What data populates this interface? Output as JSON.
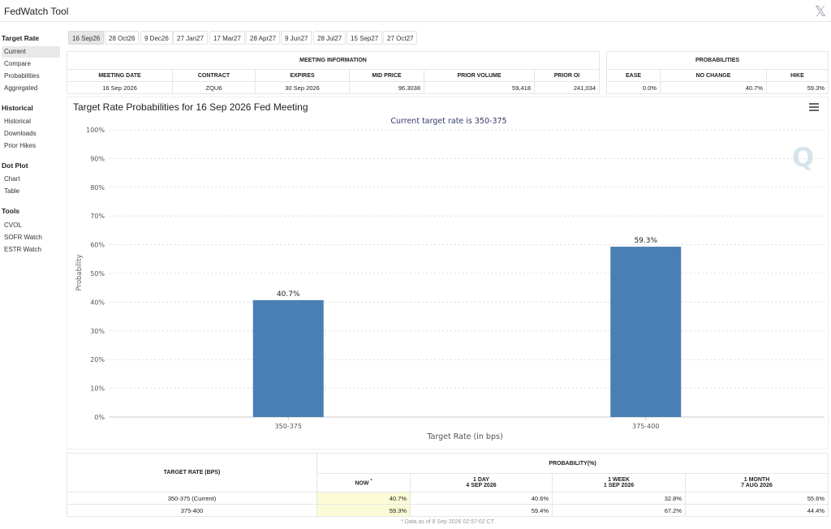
{
  "app": {
    "title": "FedWatch Tool",
    "close_icon": "x-logo-icon"
  },
  "sidebar": {
    "sections": [
      {
        "heading": "Target Rate",
        "items": [
          "Current",
          "Compare",
          "Probabilities",
          "Aggregated"
        ]
      },
      {
        "heading": "Historical",
        "items": [
          "Historical",
          "Downloads",
          "Prior Hikes"
        ]
      },
      {
        "heading": "Dot Plot",
        "items": [
          "Chart",
          "Table"
        ]
      },
      {
        "heading": "Tools",
        "items": [
          "CVOL",
          "SOFR Watch",
          "ESTR Watch"
        ]
      }
    ],
    "active_item": "Current"
  },
  "meeting_tabs": [
    "16 Sep26",
    "28 Oct26",
    "9 Dec26",
    "27 Jan27",
    "17 Mar27",
    "28 Apr27",
    "9 Jun27",
    "28 Jul27",
    "15 Sep27",
    "27 Oct27"
  ],
  "active_meeting": "16 Sep26",
  "meeting_info": {
    "heading": "MEETING INFORMATION",
    "columns": [
      "MEETING DATE",
      "CONTRACT",
      "EXPIRES",
      "MID PRICE",
      "PRIOR VOLUME",
      "PRIOR OI"
    ],
    "row": [
      "16 Sep 2026",
      "ZQU6",
      "30 Sep 2026",
      "96.3038",
      "59,418",
      "241,034"
    ]
  },
  "probabilities": {
    "heading": "PROBABILITIES",
    "columns": [
      "EASE",
      "NO CHANGE",
      "HIKE"
    ],
    "row": [
      "0.0%",
      "40.7%",
      "59.3%"
    ]
  },
  "chart_data": {
    "type": "bar",
    "title": "Target Rate Probabilities for 16 Sep 2026 Fed Meeting",
    "subtitle": "Current target rate is 350-375",
    "xlabel": "Target Rate (in bps)",
    "ylabel": "Probability",
    "categories": [
      "350-375",
      "375-400"
    ],
    "values": [
      40.7,
      59.3
    ],
    "data_labels": [
      "40.7%",
      "59.3%"
    ],
    "ylim": [
      0,
      100
    ],
    "yticks": [
      "0%",
      "10%",
      "20%",
      "30%",
      "40%",
      "50%",
      "60%",
      "70%",
      "80%",
      "90%",
      "100%"
    ],
    "grid": true,
    "bar_color": "#4a7fb5",
    "menu_icon": "hamburger-menu-icon",
    "watermark": "Q"
  },
  "probability_table": {
    "col_head": "TARGET RATE (BPS)",
    "group_head": "PROBABILITY(%)",
    "columns": [
      {
        "line1": "NOW",
        "line2": "",
        "marker": "*"
      },
      {
        "line1": "1 DAY",
        "line2": "4 SEP 2026"
      },
      {
        "line1": "1 WEEK",
        "line2": "1 SEP 2026"
      },
      {
        "line1": "1 MONTH",
        "line2": "7 AUG 2026"
      }
    ],
    "rows": [
      {
        "rate": "350-375 (Current)",
        "values": [
          "40.7%",
          "40.6%",
          "32.8%",
          "55.6%"
        ]
      },
      {
        "rate": "375-400",
        "values": [
          "59.3%",
          "59.4%",
          "67.2%",
          "44.4%"
        ]
      }
    ],
    "footnote": "* Data as of 8 Sep 2026 02:57:02 CT"
  }
}
